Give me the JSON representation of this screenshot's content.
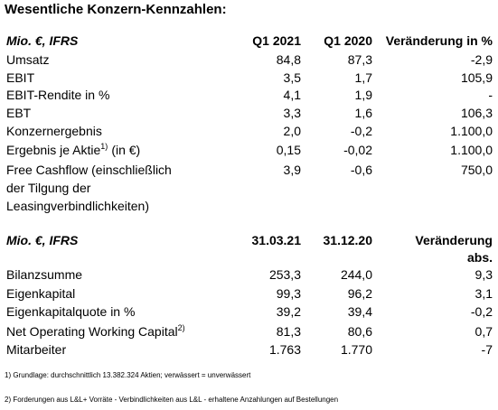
{
  "title": "Wesentliche Konzern-Kennzahlen:",
  "table1": {
    "header": [
      "Mio. €, IFRS",
      "Q1 2021",
      "Q1 2020",
      "Veränderung in %"
    ],
    "rows": [
      {
        "label": [
          "Umsatz"
        ],
        "cells": [
          "84,8",
          "87,3",
          "-2,9"
        ]
      },
      {
        "label": [
          "EBIT"
        ],
        "cells": [
          "3,5",
          "1,7",
          "105,9"
        ]
      },
      {
        "label": [
          "EBIT-Rendite in %"
        ],
        "cells": [
          "4,1",
          "1,9",
          "-"
        ]
      },
      {
        "label": [
          "EBT"
        ],
        "cells": [
          "3,3",
          "1,6",
          "106,3"
        ]
      },
      {
        "label": [
          "Konzernergebnis"
        ],
        "cells": [
          "2,0",
          "-0,2",
          "1.100,0"
        ]
      },
      {
        "label": [
          "Ergebnis je Aktie"
        ],
        "sup": "1)",
        "suffix": "(in €)",
        "cells": [
          "0,15",
          "-0,02",
          "1.100,0"
        ]
      },
      {
        "label": [
          "Free Cashflow (einschließlich",
          "der Tilgung der",
          "Leasingverbindlichkeiten)"
        ],
        "cells": [
          "3,9",
          "-0,6",
          "750,0"
        ]
      }
    ]
  },
  "table2": {
    "header": [
      "Mio. €, IFRS",
      "31.03.21",
      "31.12.20"
    ],
    "header_change": [
      "Veränderung",
      "abs."
    ],
    "rows": [
      {
        "label": [
          "Bilanzsumme"
        ],
        "cells": [
          "253,3",
          "244,0",
          "9,3"
        ]
      },
      {
        "label": [
          "Eigenkapital"
        ],
        "cells": [
          "99,3",
          "96,2",
          "3,1"
        ]
      },
      {
        "label": [
          "Eigenkapitalquote in %"
        ],
        "cells": [
          "39,2",
          "39,4",
          "-0,2"
        ]
      },
      {
        "label": [
          "Net Operating Working Capital"
        ],
        "sup": "2)",
        "cells": [
          "81,3",
          "80,6",
          "0,7"
        ]
      },
      {
        "label": [
          "Mitarbeiter"
        ],
        "cells": [
          "1.763",
          "1.770",
          "-7"
        ]
      }
    ]
  },
  "footnotes": [
    "1) Grundlage: durchschnittlich 13.382.324 Aktien; verwässert = unverwässert",
    "2) Forderungen aus L&L+ Vorräte - Verbindlichkeiten aus L&L - erhaltene Anzahlungen auf Bestellungen"
  ]
}
